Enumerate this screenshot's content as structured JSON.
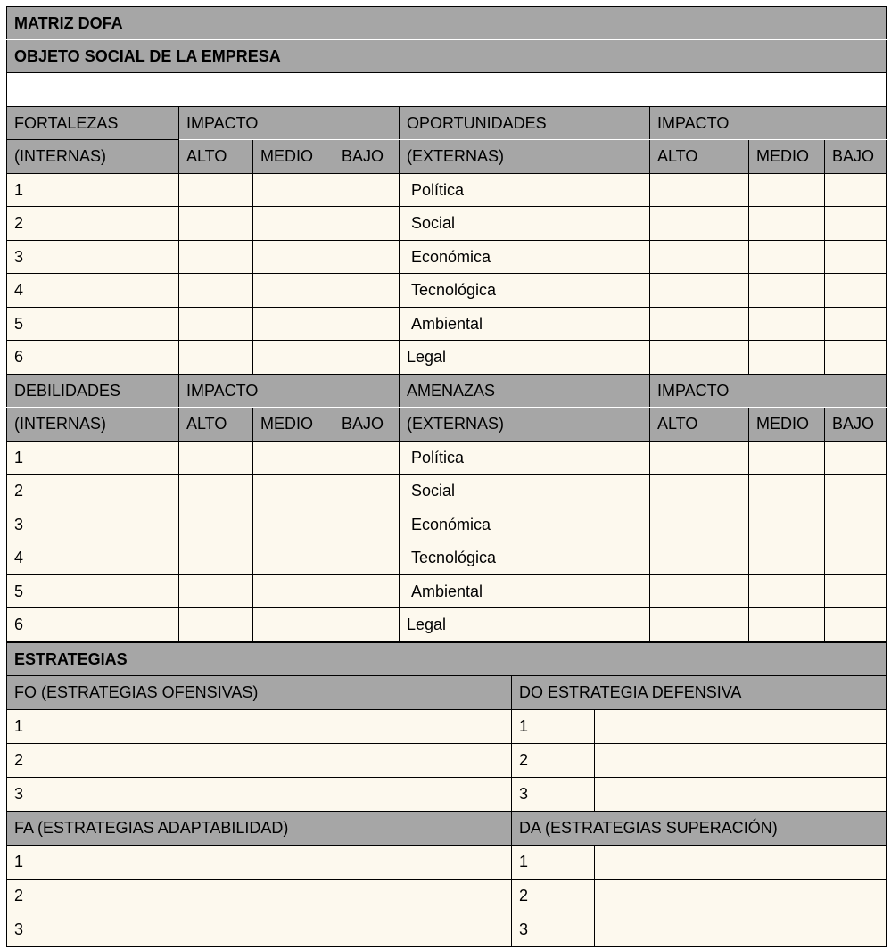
{
  "title": "MATRIZ DOFA",
  "subtitle": "OBJETO SOCIAL DE LA EMPRESA",
  "objeto_value": "",
  "colors": {
    "header_gray": "#a6a6a6",
    "cell_cream": "#fdf9ee"
  },
  "impact": {
    "label": "IMPACTO",
    "alto": "ALTO",
    "medio": "MEDIO",
    "bajo": "BAJO"
  },
  "sections": [
    {
      "left_title": "FORTALEZAS",
      "left_sub": "(INTERNAS)",
      "right_title": "OPORTUNIDADES",
      "right_sub": "(EXTERNAS)"
    },
    {
      "left_title": "DEBILIDADES",
      "left_sub": "(INTERNAS)",
      "right_title": "AMENAZAS",
      "right_sub": "(EXTERNAS)"
    }
  ],
  "numbers": [
    "1",
    "2",
    "3",
    "4",
    "5",
    "6"
  ],
  "factors": [
    "Política",
    "Social",
    "Económica",
    "Tecnológica",
    "Ambiental",
    "Legal"
  ],
  "strategies": {
    "title": "ESTRATEGIAS",
    "blocks": [
      {
        "left": "FO (ESTRATEGIAS OFENSIVAS)",
        "right": "DO ESTRATEGIA DEFENSIVA"
      },
      {
        "left": "FA (ESTRATEGIAS ADAPTABILIDAD)",
        "right": "DA (ESTRATEGIAS SUPERACIÓN)"
      }
    ],
    "numbers": [
      "1",
      "2",
      "3"
    ]
  }
}
